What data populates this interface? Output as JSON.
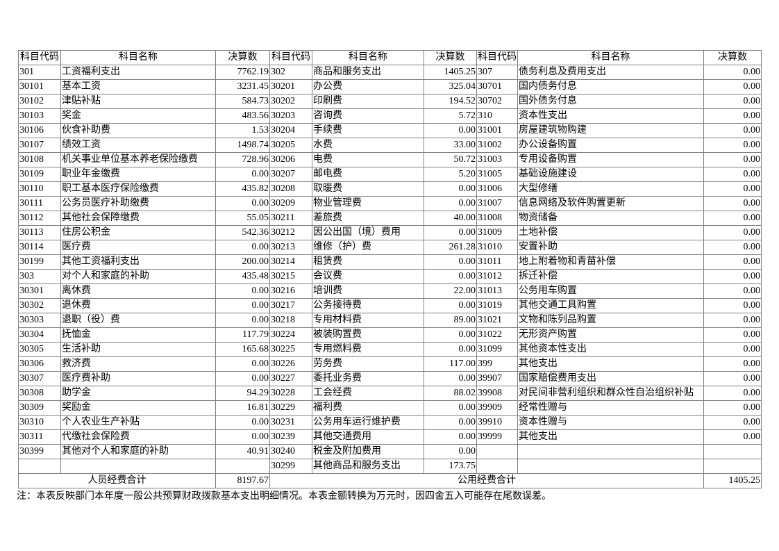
{
  "headers": [
    "科目代码",
    "科目名称",
    "决算数",
    "科目代码",
    "科目名称",
    "决算数",
    "科目代码",
    "科目名称",
    "决算数"
  ],
  "rows": [
    [
      "301",
      "工资福利支出",
      "7762.19",
      "302",
      "商品和服务支出",
      "1405.25",
      "307",
      "债务利息及费用支出",
      "0.00"
    ],
    [
      "30101",
      "基本工资",
      "3231.45",
      "30201",
      "办公费",
      "325.04",
      "30701",
      "国内债务付息",
      "0.00"
    ],
    [
      "30102",
      "津贴补贴",
      "584.73",
      "30202",
      "印刷费",
      "194.52",
      "30702",
      "国外债务付息",
      "0.00"
    ],
    [
      "30103",
      "奖金",
      "483.56",
      "30203",
      "咨询费",
      "5.72",
      "310",
      "资本性支出",
      "0.00"
    ],
    [
      "30106",
      "伙食补助费",
      "1.53",
      "30204",
      "手续费",
      "0.00",
      "31001",
      "房屋建筑物购建",
      "0.00"
    ],
    [
      "30107",
      "绩效工资",
      "1498.74",
      "30205",
      "水费",
      "33.00",
      "31002",
      "办公设备购置",
      "0.00"
    ],
    [
      "30108",
      "机关事业单位基本养老保险缴费",
      "728.96",
      "30206",
      "电费",
      "50.72",
      "31003",
      "专用设备购置",
      "0.00"
    ],
    [
      "30109",
      "职业年金缴费",
      "0.00",
      "30207",
      "邮电费",
      "5.20",
      "31005",
      "基础设施建设",
      "0.00"
    ],
    [
      "30110",
      "职工基本医疗保险缴费",
      "435.82",
      "30208",
      "取暖费",
      "0.00",
      "31006",
      "大型修缮",
      "0.00"
    ],
    [
      "30111",
      "公务员医疗补助缴费",
      "0.00",
      "30209",
      "物业管理费",
      "0.00",
      "31007",
      "信息网络及软件购置更新",
      "0.00"
    ],
    [
      "30112",
      "其他社会保障缴费",
      "55.05",
      "30211",
      "差旅费",
      "40.00",
      "31008",
      "物资储备",
      "0.00"
    ],
    [
      "30113",
      "住房公积金",
      "542.36",
      "30212",
      "因公出国（境）费用",
      "0.00",
      "31009",
      "土地补偿",
      "0.00"
    ],
    [
      "30114",
      "医疗费",
      "0.00",
      "30213",
      "维修（护）费",
      "261.28",
      "31010",
      "安置补助",
      "0.00"
    ],
    [
      "30199",
      "其他工资福利支出",
      "200.00",
      "30214",
      "租赁费",
      "0.00",
      "31011",
      "地上附着物和青苗补偿",
      "0.00"
    ],
    [
      "303",
      "对个人和家庭的补助",
      "435.48",
      "30215",
      "会议费",
      "0.00",
      "31012",
      "拆迁补偿",
      "0.00"
    ],
    [
      "30301",
      "离休费",
      "0.00",
      "30216",
      "培训费",
      "22.00",
      "31013",
      "公务用车购置",
      "0.00"
    ],
    [
      "30302",
      "退休费",
      "0.00",
      "30217",
      "公务接待费",
      "0.00",
      "31019",
      "其他交通工具购置",
      "0.00"
    ],
    [
      "30303",
      "退职（役）费",
      "0.00",
      "30218",
      "专用材料费",
      "89.00",
      "31021",
      "文物和陈列品购置",
      "0.00"
    ],
    [
      "30304",
      "抚恤金",
      "117.79",
      "30224",
      "被装购置费",
      "0.00",
      "31022",
      "无形资产购置",
      "0.00"
    ],
    [
      "30305",
      "生活补助",
      "165.68",
      "30225",
      "专用燃料费",
      "0.00",
      "31099",
      "其他资本性支出",
      "0.00"
    ],
    [
      "30306",
      "救济费",
      "0.00",
      "30226",
      "劳务费",
      "117.00",
      "399",
      "其他支出",
      "0.00"
    ],
    [
      "30307",
      "医疗费补助",
      "0.00",
      "30227",
      "委托业务费",
      "0.00",
      "39907",
      "国家赔偿费用支出",
      "0.00"
    ],
    [
      "30308",
      "助学金",
      "94.29",
      "30228",
      "工会经费",
      "88.02",
      "39908",
      "对民间非营利组织和群众性自治组织补贴",
      "0.00"
    ],
    [
      "30309",
      "奖励金",
      "16.81",
      "30229",
      "福利费",
      "0.00",
      "39909",
      "经常性赠与",
      "0.00"
    ],
    [
      "30310",
      "个人农业生产补贴",
      "0.00",
      "30231",
      "公务用车运行维护费",
      "0.00",
      "39910",
      "资本性赠与",
      "0.00"
    ],
    [
      "30311",
      "代缴社会保险费",
      "0.00",
      "30239",
      "其他交通费用",
      "0.00",
      "39999",
      "其他支出",
      "0.00"
    ],
    [
      "30399",
      "其他对个人和家庭的补助",
      "40.91",
      "30240",
      "税金及附加费用",
      "0.00",
      "",
      "",
      ""
    ],
    [
      "",
      "",
      "",
      "30299",
      "其他商品和服务支出",
      "173.75",
      "",
      "",
      ""
    ]
  ],
  "totals": {
    "personnel_label": "人员经费合计",
    "personnel_value": "8197.67",
    "public_label": "公用经费合计",
    "public_value": "1405.25"
  },
  "note": "注：本表反映部门本年度一般公共预算财政拨款基本支出明细情况。本表金额转换为万元时，因四舍五入可能存在尾数误差。"
}
